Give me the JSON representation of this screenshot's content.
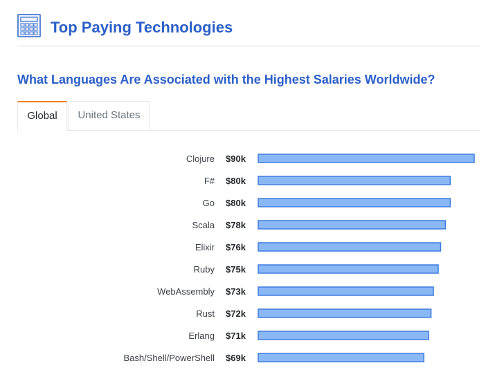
{
  "header": {
    "title": "Top Paying Technologies",
    "icon": "calculator-icon"
  },
  "subtitle": "What Languages Are Associated with the Highest Salaries Worldwide?",
  "tabs": [
    {
      "label": "Global",
      "active": true
    },
    {
      "label": "United States",
      "active": false
    }
  ],
  "colors": {
    "accent": "#2c5fc8",
    "tab_active": "#f48024",
    "bar_fill": "#8ab8f5",
    "bar_stroke": "#3f7be0"
  },
  "chart_data": {
    "type": "bar",
    "orientation": "horizontal",
    "categories": [
      "Clojure",
      "F#",
      "Go",
      "Scala",
      "Elixir",
      "Ruby",
      "WebAssembly",
      "Rust",
      "Erlang",
      "Bash/Shell/PowerShell"
    ],
    "values": [
      90,
      80,
      80,
      78,
      76,
      75,
      73,
      72,
      71,
      69
    ],
    "value_labels": [
      "$90k",
      "$80k",
      "$80k",
      "$78k",
      "$76k",
      "$75k",
      "$73k",
      "$72k",
      "$71k",
      "$69k"
    ],
    "xlim": [
      0,
      90
    ],
    "grid": false,
    "legend": "none"
  }
}
